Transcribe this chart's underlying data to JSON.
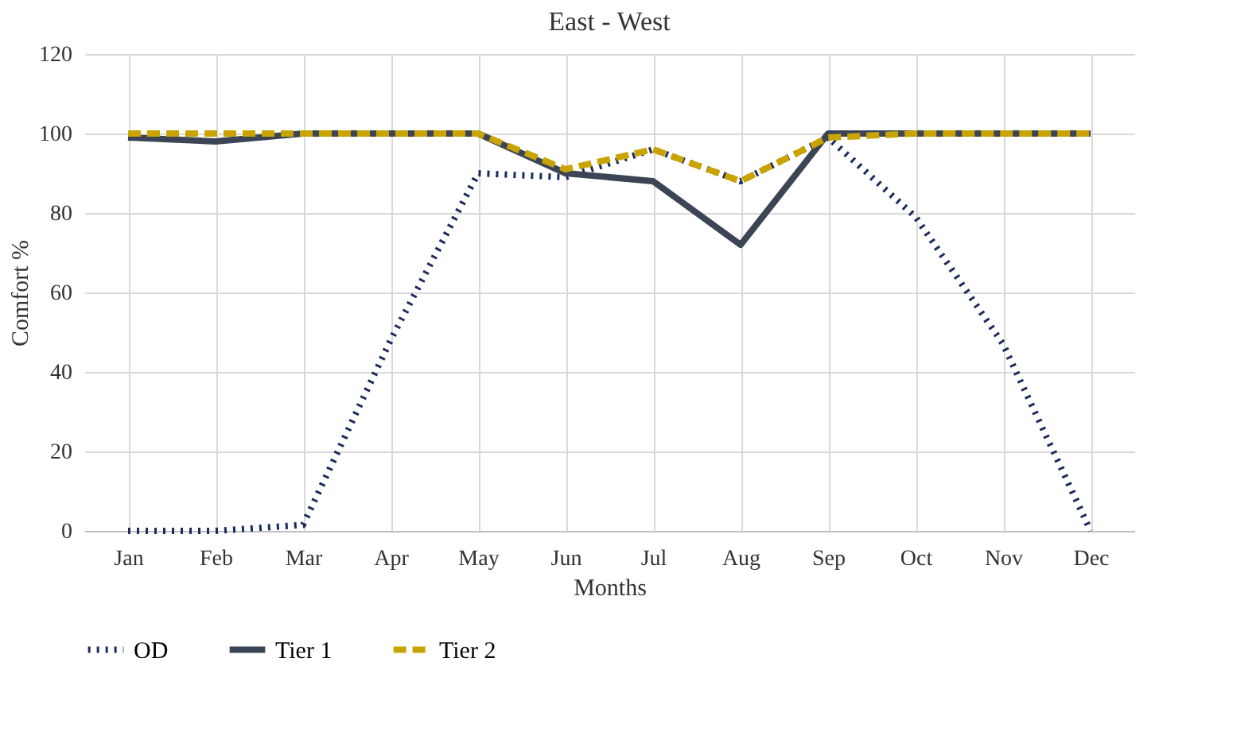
{
  "chart_data": {
    "type": "line",
    "title": "East - West",
    "xlabel": "Months",
    "ylabel": "Comfort %",
    "categories": [
      "Jan",
      "Feb",
      "Mar",
      "Apr",
      "May",
      "Jun",
      "Jul",
      "Aug",
      "Sep",
      "Oct",
      "Nov",
      "Dec"
    ],
    "series": [
      {
        "name": "OD",
        "color": "#1c2b5e",
        "line_style": "dotted",
        "values": [
          0,
          0,
          1.5,
          48,
          90,
          89,
          96,
          88,
          99,
          79,
          47,
          0
        ]
      },
      {
        "name": "Tier 1",
        "color": "#3b4556",
        "line_style": "solid",
        "values": [
          99,
          98,
          100,
          100,
          100,
          90,
          88,
          72,
          100,
          100,
          100,
          100
        ]
      },
      {
        "name": "Tier 2",
        "color": "#c9a400",
        "line_style": "dashed",
        "values": [
          100,
          100,
          100,
          100,
          100,
          91,
          96,
          88,
          99,
          100,
          100,
          100
        ]
      }
    ],
    "ylim": [
      0,
      120
    ],
    "yticks": [
      0,
      20,
      40,
      60,
      80,
      100,
      120
    ],
    "grid": true,
    "legend": "bottom",
    "marker": "none"
  }
}
